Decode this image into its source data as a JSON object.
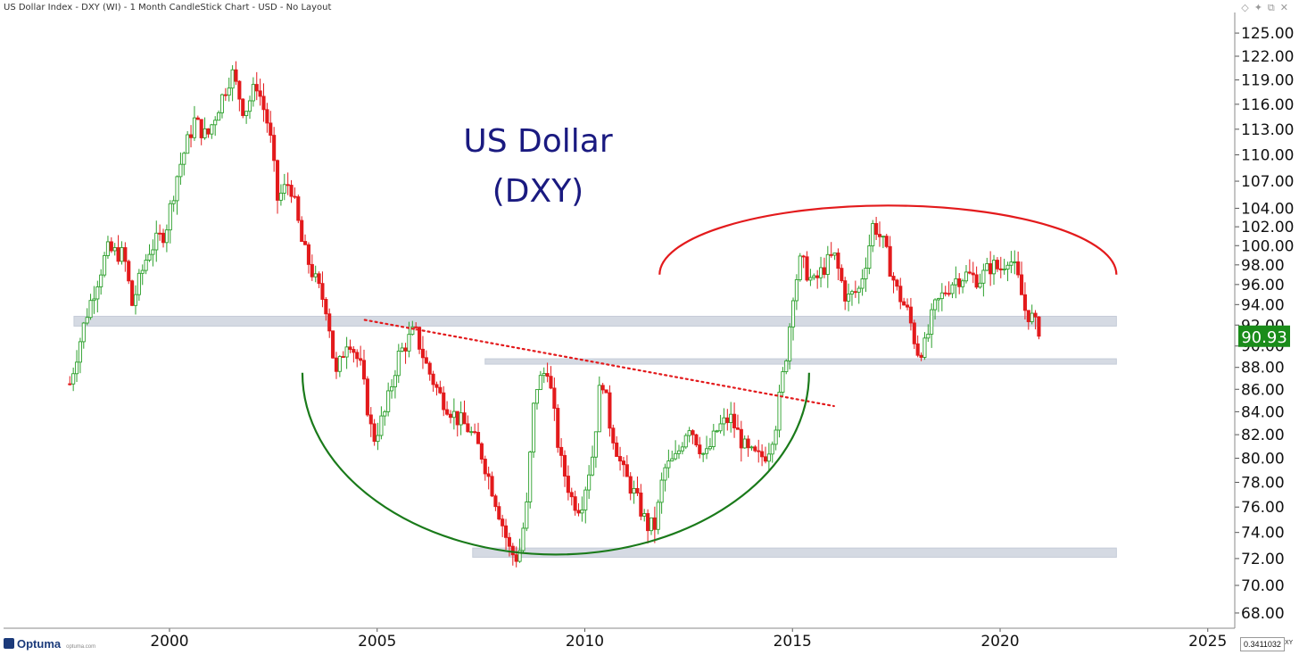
{
  "header": {
    "title": "US Dollar Index - DXY (WI) - 1 Month CandleStick Chart - USD - No Layout"
  },
  "footer": {
    "brand": "Optuma",
    "brand_url": "optuma.com",
    "cursor_value": "0.3411032",
    "cursor_mode": "XY"
  },
  "colors": {
    "up": "#2ca02c",
    "down": "#e31a1c",
    "title": "#1a1a80",
    "resistance": "#e31a1c",
    "support_arc": "#1a7a1a",
    "band": "#d5dae3",
    "last_price_bg": "#1a8c1a"
  },
  "chart_data": {
    "type": "candlestick",
    "title": "US Dollar\n(DXY)",
    "title_lines": [
      "US Dollar",
      "(DXY)"
    ],
    "x_range": [
      1997.5,
      2026.2
    ],
    "y_range": [
      67,
      126.5
    ],
    "y_scale": "log",
    "y_ticks": [
      68,
      70,
      72,
      74,
      76,
      78,
      80,
      82,
      84,
      86,
      88,
      90,
      92,
      94,
      96,
      98,
      100,
      102,
      104,
      107,
      110,
      113,
      116,
      119,
      122,
      125
    ],
    "y_tick_labels": [
      "68.00",
      "70.00",
      "72.00",
      "74.00",
      "76.00",
      "78.00",
      "80.00",
      "82.00",
      "84.00",
      "86.00",
      "88.00",
      "90.00",
      "92.00",
      "94.00",
      "96.00",
      "98.00",
      "100.00",
      "102.00",
      "104.00",
      "107.00",
      "110.00",
      "113.00",
      "116.00",
      "119.00",
      "122.00",
      "125.00"
    ],
    "x_ticks": [
      2000,
      2005,
      2010,
      2015,
      2020,
      2025
    ],
    "x_tick_labels": [
      "2000",
      "2005",
      "2010",
      "2015",
      "2020",
      "2025"
    ],
    "last_price": 90.93,
    "last_price_label": "90.93",
    "price_path": [
      [
        1997.6,
        86.5
      ],
      [
        1998.0,
        93.0
      ],
      [
        1998.5,
        99.5
      ],
      [
        1998.9,
        99.0
      ],
      [
        1999.1,
        94.0
      ],
      [
        1999.5,
        99.5
      ],
      [
        1999.9,
        101.5
      ],
      [
        2000.2,
        108.0
      ],
      [
        2000.6,
        114.0
      ],
      [
        2000.9,
        112.0
      ],
      [
        2001.2,
        116.0
      ],
      [
        2001.5,
        120.0
      ],
      [
        2001.8,
        115.0
      ],
      [
        2002.1,
        118.5
      ],
      [
        2002.4,
        113.0
      ],
      [
        2002.6,
        105.0
      ],
      [
        2002.9,
        107.0
      ],
      [
        2003.2,
        100.0
      ],
      [
        2003.5,
        96.5
      ],
      [
        2003.8,
        93.5
      ],
      [
        2004.0,
        87.0
      ],
      [
        2004.3,
        91.0
      ],
      [
        2004.6,
        88.0
      ],
      [
        2004.9,
        81.5
      ],
      [
        2005.2,
        84.0
      ],
      [
        2005.5,
        89.0
      ],
      [
        2005.9,
        91.5
      ],
      [
        2006.2,
        88.0
      ],
      [
        2006.5,
        85.5
      ],
      [
        2006.9,
        83.5
      ],
      [
        2007.2,
        82.5
      ],
      [
        2007.5,
        80.5
      ],
      [
        2007.9,
        76.0
      ],
      [
        2008.2,
        72.5
      ],
      [
        2008.4,
        72.0
      ],
      [
        2008.6,
        76.0
      ],
      [
        2008.8,
        86.0
      ],
      [
        2009.1,
        88.0
      ],
      [
        2009.4,
        80.0
      ],
      [
        2009.7,
        76.5
      ],
      [
        2009.9,
        76.0
      ],
      [
        2010.2,
        80.5
      ],
      [
        2010.4,
        87.5
      ],
      [
        2010.6,
        83.0
      ],
      [
        2010.9,
        79.0
      ],
      [
        2011.2,
        77.0
      ],
      [
        2011.5,
        74.5
      ],
      [
        2011.7,
        74.5
      ],
      [
        2011.9,
        79.0
      ],
      [
        2012.2,
        80.0
      ],
      [
        2012.5,
        83.0
      ],
      [
        2012.9,
        80.0
      ],
      [
        2013.2,
        82.5
      ],
      [
        2013.5,
        83.5
      ],
      [
        2013.9,
        80.5
      ],
      [
        2014.2,
        80.0
      ],
      [
        2014.4,
        80.5
      ],
      [
        2014.6,
        83.0
      ],
      [
        2014.8,
        88.0
      ],
      [
        2014.9,
        90.5
      ],
      [
        2015.0,
        95.0
      ],
      [
        2015.2,
        98.5
      ],
      [
        2015.5,
        96.0
      ],
      [
        2015.8,
        98.0
      ],
      [
        2016.0,
        99.0
      ],
      [
        2016.3,
        94.5
      ],
      [
        2016.6,
        95.5
      ],
      [
        2016.8,
        99.0
      ],
      [
        2016.95,
        102.5
      ],
      [
        2017.2,
        100.0
      ],
      [
        2017.5,
        95.5
      ],
      [
        2017.8,
        93.0
      ],
      [
        2018.0,
        89.5
      ],
      [
        2018.2,
        90.0
      ],
      [
        2018.4,
        93.5
      ],
      [
        2018.7,
        95.5
      ],
      [
        2018.9,
        96.5
      ],
      [
        2019.2,
        97.0
      ],
      [
        2019.5,
        96.5
      ],
      [
        2019.8,
        98.0
      ],
      [
        2020.0,
        97.5
      ],
      [
        2020.2,
        99.0
      ],
      [
        2020.4,
        97.0
      ],
      [
        2020.6,
        93.5
      ],
      [
        2020.8,
        92.5
      ],
      [
        2020.95,
        90.9
      ]
    ],
    "annotations": {
      "support_bands": [
        {
          "x_from": 1997.7,
          "x_to": 2022.8,
          "y_low": 91.9,
          "y_high": 92.85
        },
        {
          "x_from": 2007.6,
          "x_to": 2022.8,
          "y_low": 88.3,
          "y_high": 88.8
        },
        {
          "x_from": 2007.3,
          "x_to": 2022.8,
          "y_low": 72.1,
          "y_high": 72.8
        }
      ],
      "trendline": {
        "from": [
          2004.7,
          92.5
        ],
        "to": [
          2016.0,
          84.5
        ],
        "style": "dotted",
        "color": "red"
      },
      "rounding_bottom": {
        "center_year": 2009.3,
        "half_width_years": 6.1,
        "top": 87.5,
        "bottom": 72.3
      },
      "rounding_top": {
        "center_year": 2017.3,
        "half_width_years": 5.5,
        "base": 97.0,
        "top": 104.3
      }
    }
  }
}
